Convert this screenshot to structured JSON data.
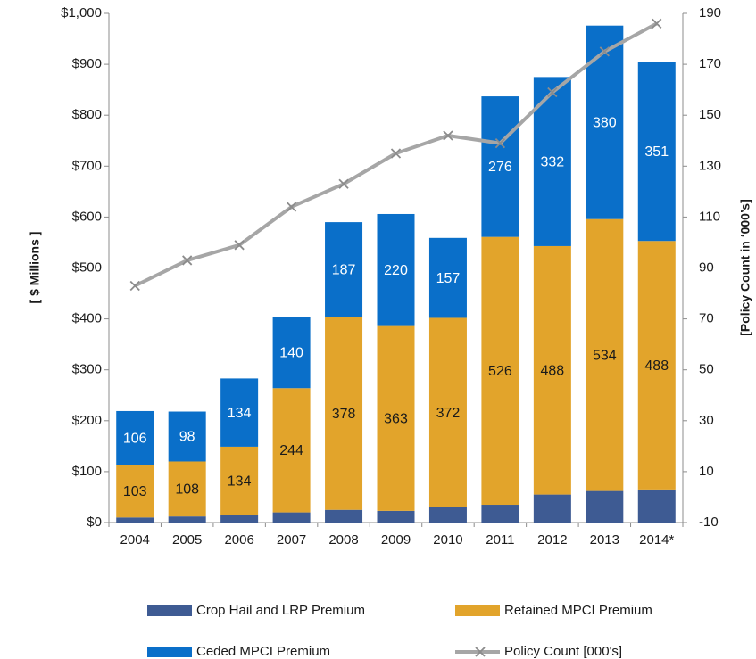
{
  "chart_data": {
    "type": "bar",
    "stacked": true,
    "categories": [
      "2004",
      "2005",
      "2006",
      "2007",
      "2008",
      "2009",
      "2010",
      "2011",
      "2012",
      "2013",
      "2014*"
    ],
    "series": [
      {
        "name": "Crop Hail and LRP Premium",
        "color": "#3e5b93",
        "values": [
          10,
          12,
          15,
          20,
          25,
          23,
          30,
          35,
          55,
          62,
          65
        ],
        "show_labels": false
      },
      {
        "name": "Retained MPCI Premium",
        "color": "#e2a42b",
        "values": [
          103,
          108,
          134,
          244,
          378,
          363,
          372,
          526,
          488,
          534,
          488
        ],
        "show_labels": true,
        "label_color": "#1a1a1a"
      },
      {
        "name": "Ceded MPCI Premium",
        "color": "#0a6fc9",
        "values": [
          106,
          98,
          134,
          140,
          187,
          220,
          157,
          276,
          332,
          380,
          351
        ],
        "show_labels": true,
        "label_color": "#ffffff"
      },
      {
        "name": "Policy Count [000's]",
        "type": "line",
        "axis": "y2",
        "color": "#a6a6a6",
        "values": [
          83,
          93,
          99,
          114,
          123,
          135,
          142,
          139,
          159,
          175,
          186
        ]
      }
    ],
    "y_label": "[ $ Millions ]",
    "y2_label": "[Policy Count in ‘000’s]",
    "ylim": [
      0,
      1000
    ],
    "yticks": [
      {
        "value": 0,
        "label": "$0"
      },
      {
        "value": 100,
        "label": "$100"
      },
      {
        "value": 200,
        "label": "$200"
      },
      {
        "value": 300,
        "label": "$300"
      },
      {
        "value": 400,
        "label": "$400"
      },
      {
        "value": 500,
        "label": "$500"
      },
      {
        "value": 600,
        "label": "$600"
      },
      {
        "value": 700,
        "label": "$700"
      },
      {
        "value": 800,
        "label": "$800"
      },
      {
        "value": 900,
        "label": "$900"
      },
      {
        "value": 1000,
        "label": "$1,000"
      }
    ],
    "y2lim": [
      -10,
      190
    ],
    "y2ticks": [
      -10,
      10,
      30,
      50,
      70,
      90,
      110,
      130,
      150,
      170,
      190
    ],
    "grid": false,
    "legend": "bottom"
  }
}
